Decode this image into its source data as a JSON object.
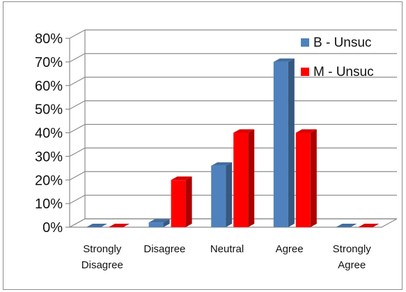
{
  "chart_data": {
    "type": "bar",
    "categories": [
      "Strongly Disagree",
      "Disagree",
      "Neutral",
      "Agree",
      "Strongly Agree"
    ],
    "category_lines": [
      [
        "Strongly",
        "Disagree"
      ],
      [
        "Disagree"
      ],
      [
        "Neutral"
      ],
      [
        "Agree"
      ],
      [
        "Strongly",
        "Agree"
      ]
    ],
    "series": [
      {
        "name": "B - Unsuc",
        "values": [
          0,
          2,
          26,
          70,
          0
        ],
        "color": "#4f81bd"
      },
      {
        "name": "M - Unsuc",
        "values": [
          0,
          20,
          40,
          40,
          0
        ],
        "color": "#ff0000"
      }
    ],
    "title": "",
    "xlabel": "",
    "ylabel": "",
    "ylim": [
      0,
      80
    ],
    "yticks": [
      "0%",
      "10%",
      "20%",
      "30%",
      "40%",
      "50%",
      "60%",
      "70%",
      "80%"
    ],
    "grid": true,
    "legend_position": "top-right",
    "style": "3d-clustered-column"
  }
}
